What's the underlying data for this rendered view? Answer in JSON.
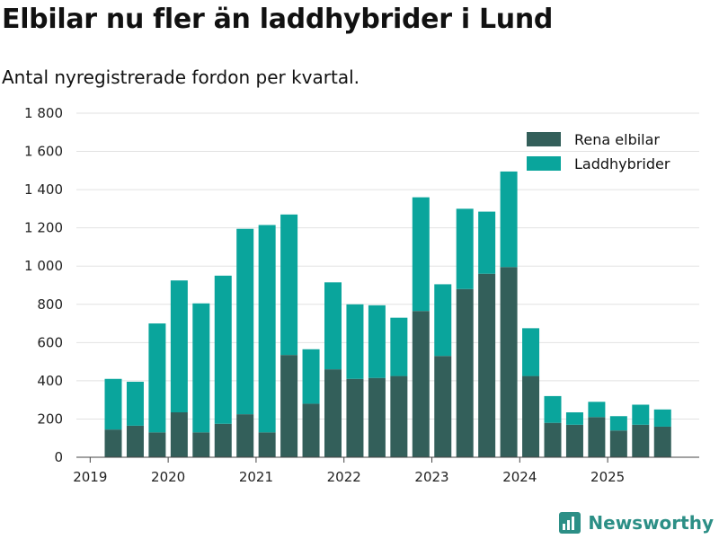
{
  "title": "Elbilar nu fler än laddhybrider i Lund",
  "subtitle": "Antal nyregistrerade fordon per kvartal.",
  "brand": "Newsworthy",
  "colors": {
    "elbilar": "#335f5a",
    "laddhybrider": "#0aa59c",
    "brand": "#2c8f86"
  },
  "chart_data": {
    "type": "bar",
    "stacked": true,
    "categories": [
      "2019Q2",
      "2019Q3",
      "2019Q4",
      "2020Q1",
      "2020Q2",
      "2020Q3",
      "2020Q4",
      "2021Q1",
      "2021Q2",
      "2021Q3",
      "2021Q4",
      "2022Q1",
      "2022Q2",
      "2022Q3",
      "2022Q4",
      "2023Q1",
      "2023Q2",
      "2023Q3",
      "2023Q4",
      "2024Q1",
      "2024Q2",
      "2024Q3",
      "2024Q4",
      "2025Q1",
      "2025Q2",
      "2025Q3"
    ],
    "series": [
      {
        "name": "Rena elbilar",
        "values": [
          145,
          165,
          130,
          235,
          130,
          175,
          225,
          130,
          535,
          280,
          460,
          410,
          415,
          425,
          765,
          530,
          880,
          960,
          995,
          425,
          180,
          170,
          210,
          140,
          170,
          160
        ]
      },
      {
        "name": "Laddhybrider",
        "values": [
          265,
          230,
          570,
          690,
          675,
          775,
          970,
          1085,
          735,
          285,
          455,
          390,
          380,
          305,
          595,
          375,
          420,
          325,
          500,
          250,
          140,
          65,
          80,
          75,
          105,
          90
        ]
      }
    ],
    "x_ticks": [
      "2019",
      "2020",
      "2021",
      "2022",
      "2023",
      "2024",
      "2025"
    ],
    "y_ticks": [
      "0",
      "200",
      "400",
      "600",
      "800",
      "1 000",
      "1 200",
      "1 400",
      "1 600",
      "1 800"
    ],
    "ylim": [
      0,
      1800
    ],
    "legend_position": "top-right",
    "grid": true
  }
}
